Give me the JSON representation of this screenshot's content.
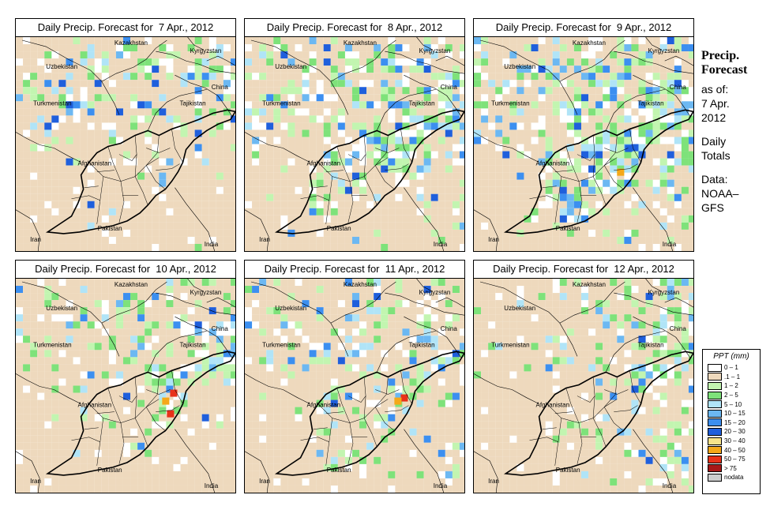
{
  "panels": [
    {
      "title": "Daily Precip. Forecast for  7 Apr., 2012",
      "day": 7
    },
    {
      "title": "Daily Precip. Forecast for  8 Apr., 2012",
      "day": 8
    },
    {
      "title": "Daily Precip. Forecast for  9 Apr., 2012",
      "day": 9
    },
    {
      "title": "Daily Precip. Forecast for  10 Apr., 2012",
      "day": 10
    },
    {
      "title": "Daily Precip. Forecast for  11 Apr., 2012",
      "day": 11
    },
    {
      "title": "Daily Precip. Forecast for  12 Apr., 2012",
      "day": 12
    }
  ],
  "country_labels": {
    "uzbekistan": "Uzbekistan",
    "kazakhstan": "Kazakhstan",
    "kyrgyzstan": "Kyrgyzstan",
    "china": "China",
    "tajikistan": "Tajikistan",
    "turkmenistan": "Turkmenistan",
    "afghanistan": "Afghanistan",
    "pakistan": "Pakistan",
    "iran": "Iran",
    "india": "India"
  },
  "side": {
    "title_line1": "Precip.",
    "title_line2": "Forecast",
    "asof_line1": "as of:",
    "asof_line2": "7 Apr.",
    "asof_line3": "2012",
    "totals_line1": "Daily",
    "totals_line2": "Totals",
    "data_line1": "Data:",
    "data_line2": "NOAA–",
    "data_line3": "GFS"
  },
  "legend": {
    "title": "PPT (mm)",
    "items": [
      {
        "label": "0 – 1",
        "color": "#ffffff"
      },
      {
        "label": ".1 – 1",
        "color": "#eed9bd"
      },
      {
        "label": "1 – 2",
        "color": "#c2f5b0"
      },
      {
        "label": "2 – 5",
        "color": "#7ee27a"
      },
      {
        "label": "5 – 10",
        "color": "#b0e4f7"
      },
      {
        "label": "10 – 15",
        "color": "#6cb8f2"
      },
      {
        "label": "15 – 20",
        "color": "#3c8ff0"
      },
      {
        "label": "20 – 30",
        "color": "#1f5fdc"
      },
      {
        "label": "30 – 40",
        "color": "#f7e38a"
      },
      {
        "label": "40 – 50",
        "color": "#f5a818"
      },
      {
        "label": "50 – 75",
        "color": "#e8321a"
      },
      {
        "label": "> 75",
        "color": "#a81818"
      },
      {
        "label": "nodata",
        "color": "#cccccc"
      }
    ]
  }
}
